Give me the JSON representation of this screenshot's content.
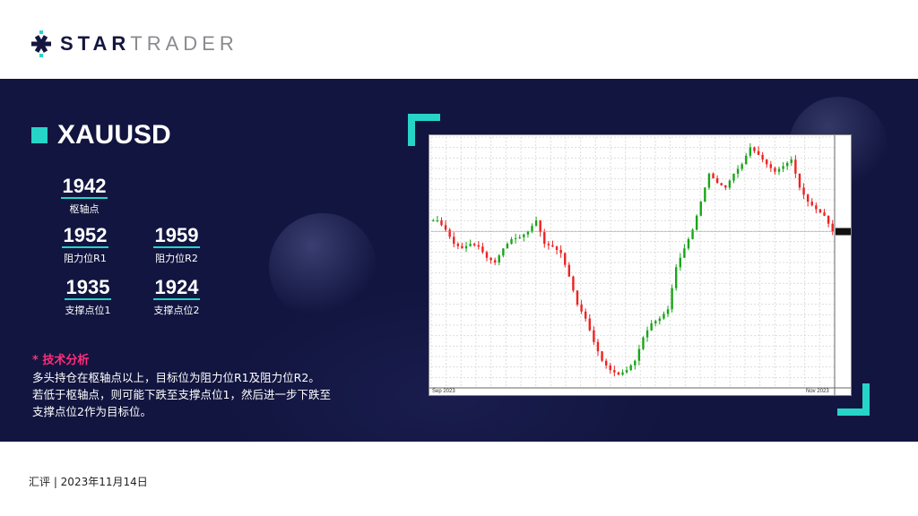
{
  "brand": {
    "name_bold": "STAR",
    "name_light": "TRADER",
    "colors": {
      "navy": "#14163f",
      "cyan": "#26d5c8",
      "pink": "#ff2d7a"
    }
  },
  "symbol": "XAUUSD",
  "levels": {
    "pivot": {
      "value": "1942",
      "label": "枢轴点"
    },
    "r1": {
      "value": "1952",
      "label": "阻力位R1"
    },
    "r2": {
      "value": "1959",
      "label": "阻力位R2"
    },
    "s1": {
      "value": "1935",
      "label": "支撑点位1"
    },
    "s2": {
      "value": "1924",
      "label": "支撑点位2"
    }
  },
  "analysis": {
    "title": "* 技术分析",
    "lines": [
      "多头持仓在枢轴点以上，目标位为阻力位R1及阻力位R2。",
      "若低于枢轴点，则可能下跌至支撑点位1，然后进一步下跌至",
      "支撑点位2作为目标位。"
    ]
  },
  "footer": "汇评 | 2023年11月14日",
  "chart_data": {
    "type": "line",
    "style": "candlestick",
    "colors": {
      "up": "#1aa51a",
      "down": "#ee2222"
    },
    "grid": true,
    "x_start": "Sep 2023",
    "x_end": "Nov 2023",
    "ylim": [
      1805,
      2012
    ],
    "closes": [
      1943.2,
      1935.5,
      1923.9,
      1920.1,
      1923.9,
      1921.6,
      1912.4,
      1908.5,
      1920.1,
      1927.8,
      1929.3,
      1934.0,
      1943.2,
      1923.9,
      1921.6,
      1916.2,
      1896.9,
      1873.8,
      1862.2,
      1842.9,
      1827.4,
      1819.7,
      1815.9,
      1819.7,
      1827.4,
      1846.7,
      1858.3,
      1862.2,
      1869.9,
      1904.6,
      1920.1,
      1935.5,
      1958.7,
      1981.8,
      1974.1,
      1970.3,
      1981.8,
      1989.6,
      2003.5,
      1997.3,
      1989.6,
      1983.4,
      1988.0,
      1993.4,
      1970.3,
      1958.7,
      1952.5,
      1947.1,
      1934.0
    ]
  }
}
